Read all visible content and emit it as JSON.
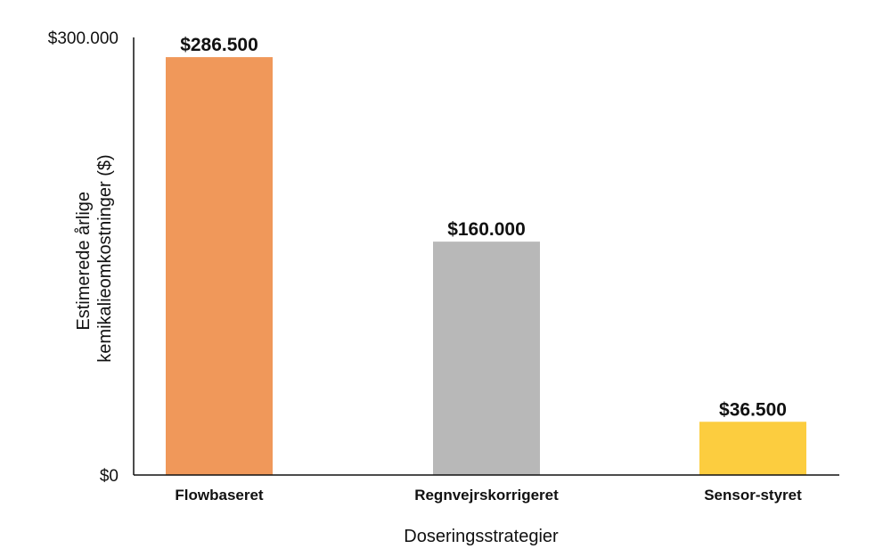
{
  "chart_data": {
    "type": "bar",
    "categories": [
      "Flowbaseret",
      "Regnvejrskorrigeret",
      "Sensor-styret"
    ],
    "values": [
      286500,
      160000,
      36500
    ],
    "value_labels": [
      "$286.500",
      "$160.000",
      "$36.500"
    ],
    "colors": [
      "#F0985A",
      "#B8B8B8",
      "#FCCD3F"
    ],
    "xlabel": "Doseringsstrategier",
    "ylabel_lines": [
      "Estimerede årlige",
      "kemikalieomkostninger ($)"
    ],
    "ylim": [
      0,
      300000
    ],
    "yticks": [
      {
        "value": 0,
        "label": "$0"
      },
      {
        "value": 300000,
        "label": "$300.000"
      }
    ],
    "grid": false
  }
}
